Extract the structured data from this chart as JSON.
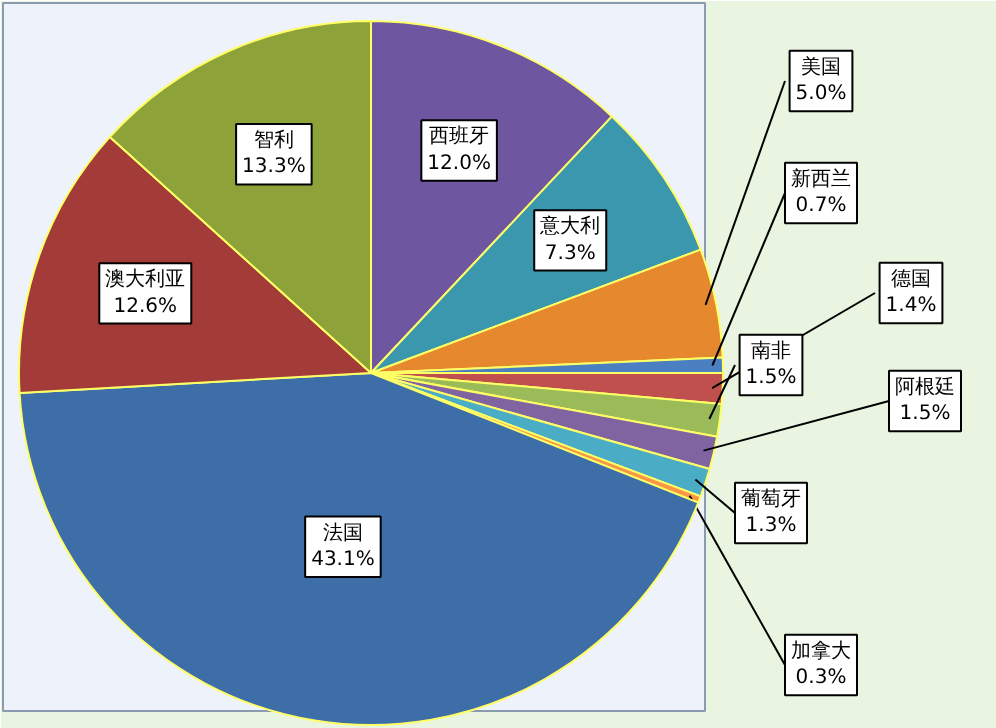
{
  "chart_data": {
    "type": "pie",
    "categories": [
      "西班牙",
      "意大利",
      "美国",
      "新西兰",
      "德国",
      "南非",
      "阿根廷",
      "葡萄牙",
      "加拿大",
      "法国",
      "澳大利亚",
      "智利"
    ],
    "values": [
      12.0,
      7.3,
      5.0,
      0.7,
      1.4,
      1.5,
      1.5,
      1.3,
      0.3,
      43.1,
      12.6,
      13.3
    ],
    "value_labels": [
      "12.0%",
      "7.3%",
      "5.0%",
      "0.7%",
      "1.4%",
      "1.5%",
      "1.5%",
      "1.3%",
      "0.3%",
      "43.1%",
      "12.6%",
      "13.3%"
    ],
    "colors": [
      "#6e56a0",
      "#3a97ad",
      "#e5882e",
      "#4a7fc2",
      "#c0504d",
      "#9bbb59",
      "#8064a2",
      "#4bacc6",
      "#f79646",
      "#3e6ea8",
      "#a33b39",
      "#8ea23a"
    ]
  }
}
